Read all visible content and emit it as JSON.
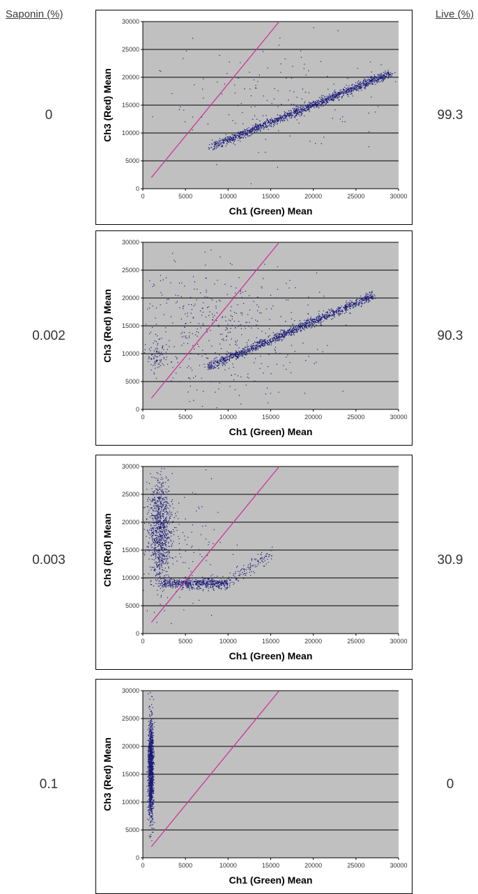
{
  "headers": {
    "left": "Saponin (%)",
    "right": "Live (%)"
  },
  "colors": {
    "plot_bg": "#c0c0c0",
    "points": "#1a1a7a",
    "diagonal": "#cc3399",
    "grid": "#000000"
  },
  "chart_data": [
    {
      "type": "scatter",
      "saponin": "0",
      "live": "99.3",
      "xlabel": "Ch1 (Green) Mean",
      "ylabel": "Ch3 (Red) Mean",
      "xlim": [
        0,
        30000
      ],
      "ylim": [
        0,
        30000
      ],
      "xticks": [
        "0",
        "5000",
        "10000",
        "15000",
        "20000",
        "25000",
        "30000"
      ],
      "yticks": [
        "0",
        "5000",
        "10000",
        "15000",
        "20000",
        "25000",
        "30000"
      ],
      "grid": "horizontal",
      "reference_line": [
        [
          1000,
          2000
        ],
        [
          16000,
          30000
        ]
      ],
      "clusters": [
        {
          "kind": "band",
          "x0": 8000,
          "y0": 7600,
          "x1": 29000,
          "y1": 20800,
          "spread": 380,
          "count": 1500
        },
        {
          "kind": "blob",
          "x": 17000,
          "y": 17000,
          "sx": 7500,
          "sy": 5000,
          "count": 160
        }
      ]
    },
    {
      "type": "scatter",
      "saponin": "0.002",
      "live": "90.3",
      "xlabel": "Ch1 (Green) Mean",
      "ylabel": "Ch3 (Red) Mean",
      "xlim": [
        0,
        30000
      ],
      "ylim": [
        0,
        30000
      ],
      "xticks": [
        "0",
        "5000",
        "10000",
        "15000",
        "20000",
        "25000",
        "30000"
      ],
      "yticks": [
        "0",
        "5000",
        "10000",
        "15000",
        "20000",
        "25000",
        "30000"
      ],
      "grid": "horizontal",
      "reference_line": [
        [
          1000,
          2000
        ],
        [
          16000,
          30000
        ]
      ],
      "clusters": [
        {
          "kind": "band",
          "x0": 7500,
          "y0": 7600,
          "x1": 27000,
          "y1": 20500,
          "spread": 380,
          "count": 1300
        },
        {
          "kind": "blob",
          "x": 8000,
          "y": 15000,
          "sx": 6000,
          "sy": 6000,
          "count": 500
        },
        {
          "kind": "blob",
          "x": 1500,
          "y": 10000,
          "sx": 600,
          "sy": 1500,
          "count": 80
        }
      ]
    },
    {
      "type": "scatter",
      "saponin": "0.003",
      "live": "30.9",
      "xlabel": "Ch1 (Green) Mean",
      "ylabel": "Ch3 (Red) Mean",
      "xlim": [
        0,
        30000
      ],
      "ylim": [
        0,
        30000
      ],
      "xticks": [
        "0",
        "5000",
        "10000",
        "15000",
        "20000",
        "25000",
        "30000"
      ],
      "yticks": [
        "0",
        "5000",
        "10000",
        "15000",
        "20000",
        "25000",
        "30000"
      ],
      "grid": "horizontal",
      "reference_line": [
        [
          1000,
          2000
        ],
        [
          16000,
          30000
        ]
      ],
      "clusters": [
        {
          "kind": "blob",
          "x": 2000,
          "y": 18500,
          "sx": 700,
          "sy": 5000,
          "count": 900
        },
        {
          "kind": "band",
          "x0": 2000,
          "y0": 9200,
          "x1": 10000,
          "y1": 9000,
          "spread": 450,
          "count": 600
        },
        {
          "kind": "band",
          "x0": 10000,
          "y0": 9200,
          "x1": 15000,
          "y1": 14500,
          "spread": 600,
          "count": 120
        },
        {
          "kind": "blob",
          "x": 4000,
          "y": 16000,
          "sx": 3000,
          "sy": 6000,
          "count": 120
        }
      ]
    },
    {
      "type": "scatter",
      "saponin": "0.1",
      "live": "0",
      "xlabel": "Ch1 (Green) Mean",
      "ylabel": "Ch3 (Red) Mean",
      "xlim": [
        0,
        30000
      ],
      "ylim": [
        0,
        30000
      ],
      "xticks": [
        "0",
        "5000",
        "10000",
        "15000",
        "20000",
        "25000",
        "30000"
      ],
      "yticks": [
        "0",
        "5000",
        "10000",
        "15000",
        "20000",
        "25000",
        "30000"
      ],
      "grid": "horizontal",
      "reference_line": [
        [
          1000,
          2000
        ],
        [
          16000,
          30000
        ]
      ],
      "clusters": [
        {
          "kind": "blob",
          "x": 900,
          "y": 16000,
          "sx": 150,
          "sy": 4500,
          "count": 1400
        }
      ]
    }
  ]
}
